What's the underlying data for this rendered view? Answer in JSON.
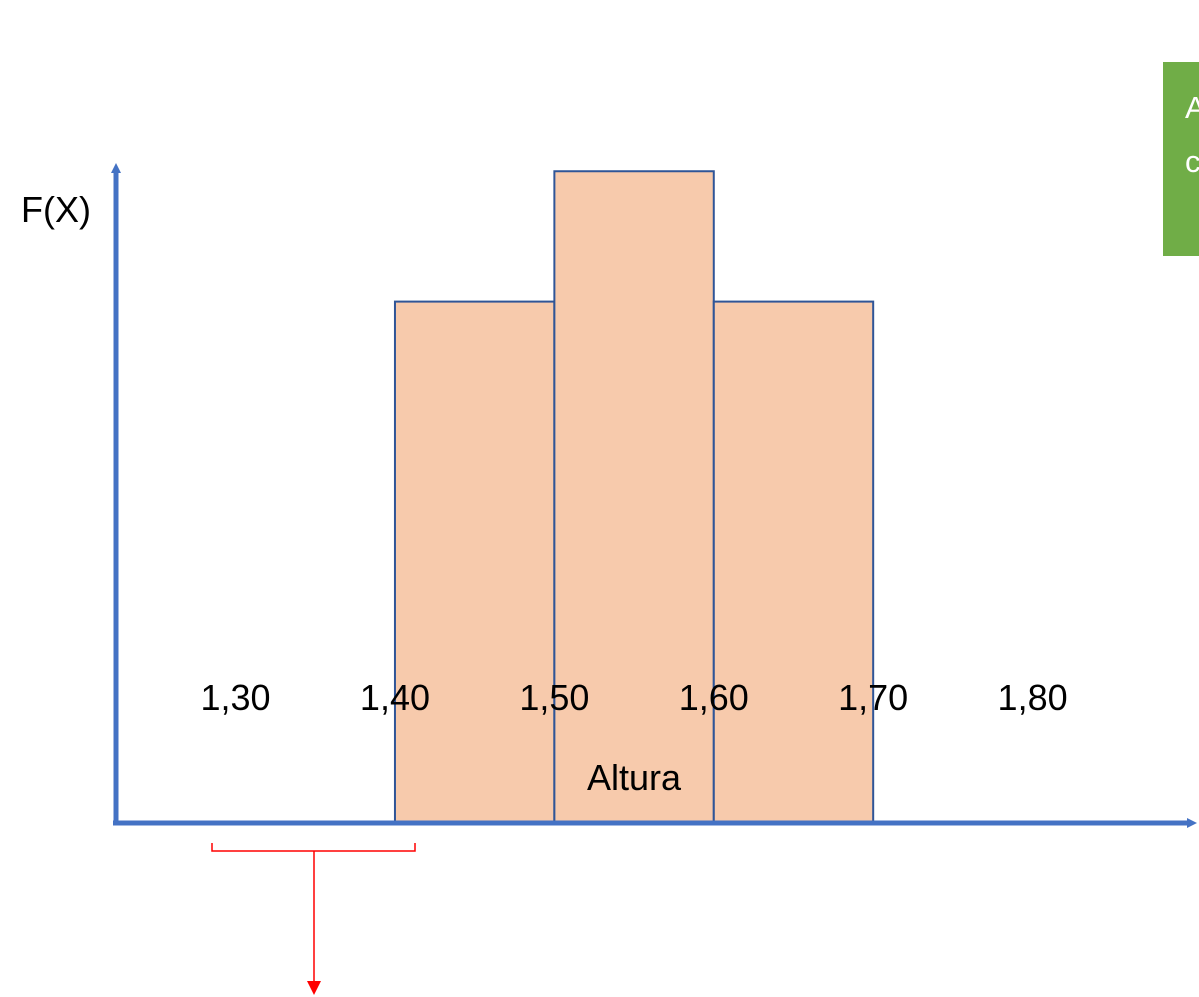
{
  "chart_data": {
    "type": "bar",
    "ylabel": "F(X)",
    "xlabel": "Altura",
    "x_ticks": [
      "1,30",
      "1,40",
      "1,50",
      "1,60",
      "1,70",
      "1,80"
    ],
    "bins": [
      {
        "from": 1.4,
        "to": 1.5,
        "value": 2
      },
      {
        "from": 1.5,
        "to": 1.6,
        "value": 2.5
      },
      {
        "from": 1.6,
        "to": 1.7,
        "value": 2
      }
    ],
    "xlim": [
      1.225,
      1.9
    ],
    "ylim": [
      0,
      2.85
    ],
    "colors": {
      "axis": "#4472c4",
      "bar_fill": "#f7caac",
      "bar_stroke": "#2f5597",
      "bracket": "#ff0000",
      "note": "#70ad47"
    }
  },
  "note": {
    "line1": "A",
    "line2": "c"
  }
}
